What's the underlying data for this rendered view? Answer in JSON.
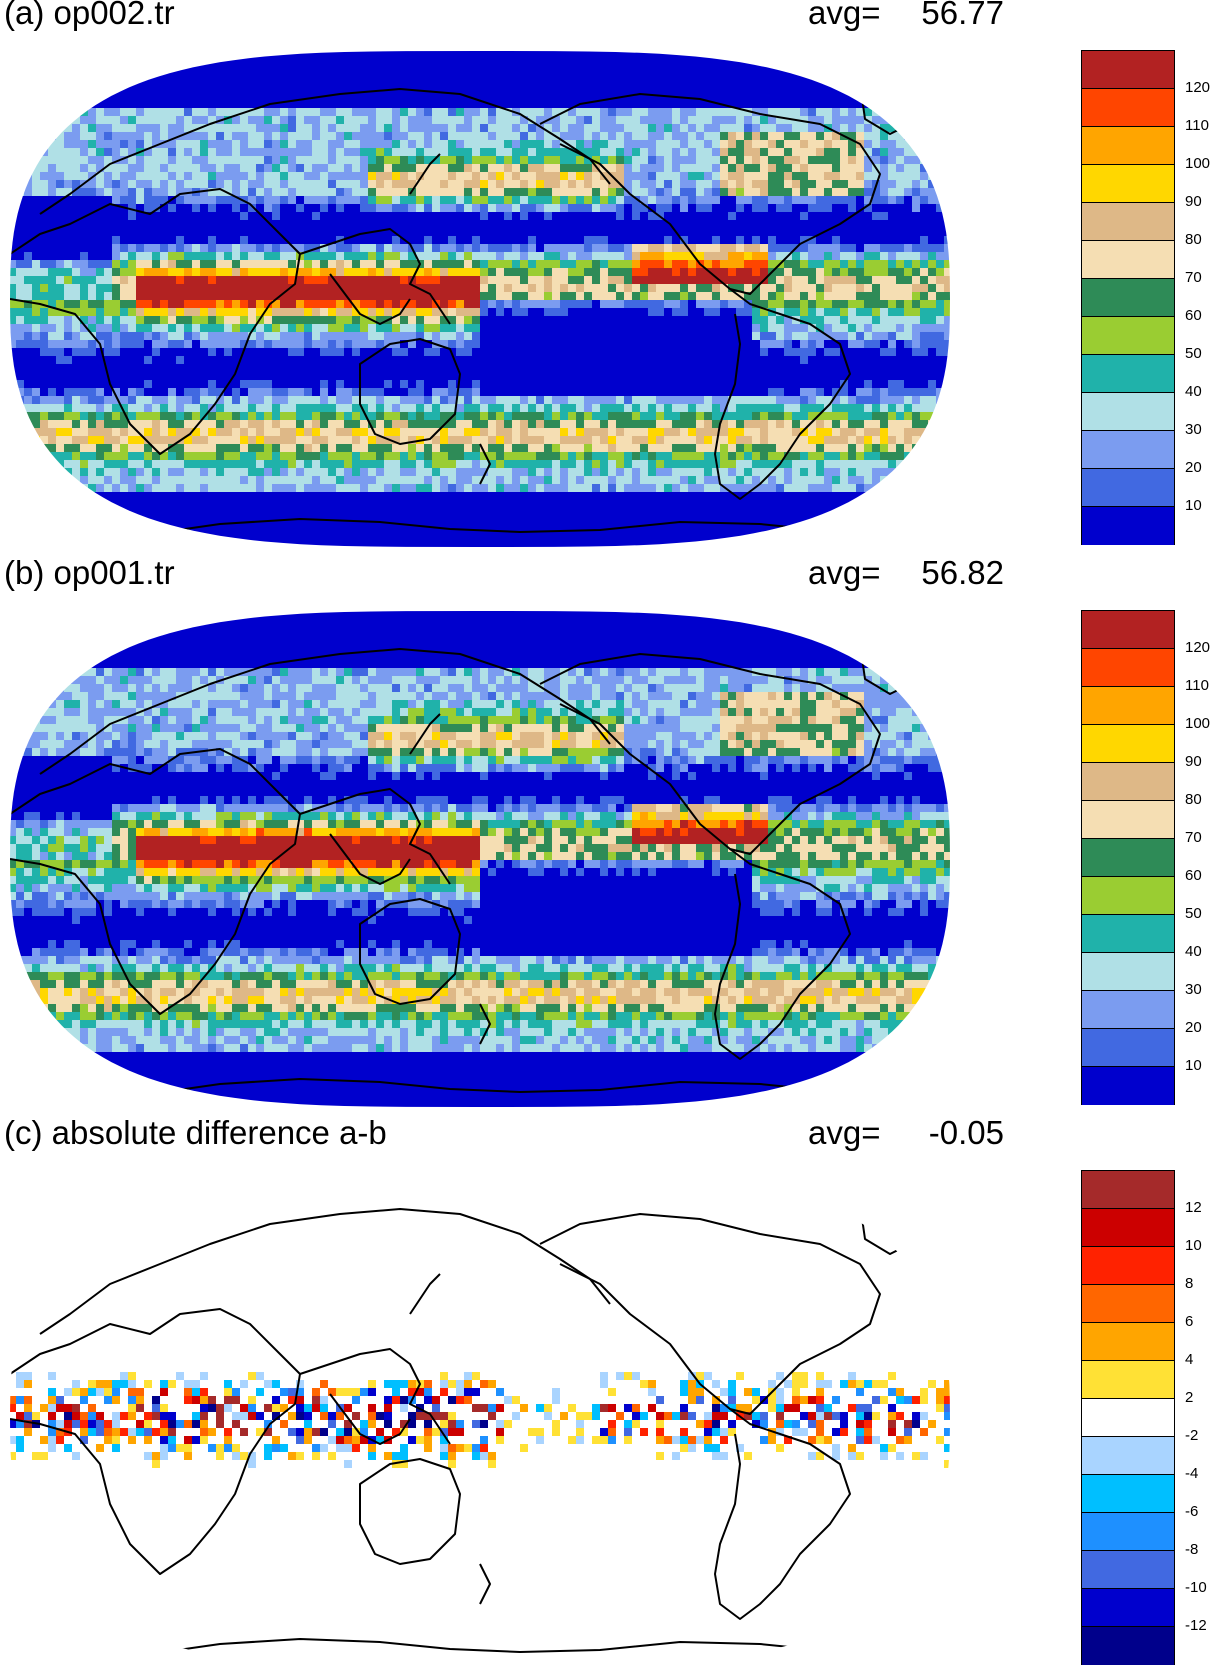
{
  "chart_data": [
    {
      "type": "heatmap",
      "panel_label": "(a) op002.tr",
      "avg_label": "avg=",
      "avg_value": "56.77",
      "projection": "Robinson (world map, Pacific-centred)",
      "colorbar": {
        "colors": [
          "#b22222",
          "#ff4500",
          "#ffa500",
          "#ffd700",
          "#deb887",
          "#f5deb3",
          "#2e8b57",
          "#9acd32",
          "#20b2aa",
          "#b0e0e6",
          "#7b9cf0",
          "#4169e1",
          "#0000cd"
        ],
        "labels": [
          "120",
          "110",
          "100",
          "90",
          "80",
          "70",
          "60",
          "50",
          "40",
          "30",
          "20",
          "10"
        ]
      }
    },
    {
      "type": "heatmap",
      "panel_label": "(b) op001.tr",
      "avg_label": "avg=",
      "avg_value": "56.82",
      "projection": "Robinson (world map, Pacific-centred)",
      "colorbar": {
        "colors": [
          "#b22222",
          "#ff4500",
          "#ffa500",
          "#ffd700",
          "#deb887",
          "#f5deb3",
          "#2e8b57",
          "#9acd32",
          "#20b2aa",
          "#b0e0e6",
          "#7b9cf0",
          "#4169e1",
          "#0000cd"
        ],
        "labels": [
          "120",
          "110",
          "100",
          "90",
          "80",
          "70",
          "60",
          "50",
          "40",
          "30",
          "20",
          "10"
        ]
      }
    },
    {
      "type": "heatmap",
      "panel_label": "(c) absolute difference a-b",
      "avg_label": "avg=",
      "avg_value": "-0.05",
      "projection": "Robinson (world map, Pacific-centred)",
      "colorbar": {
        "colors": [
          "#a52a2a",
          "#cc0000",
          "#ff2200",
          "#ff6600",
          "#ffa500",
          "#ffe135",
          "#ffffff",
          "#a9d4ff",
          "#00bfff",
          "#1e90ff",
          "#4169e1",
          "#0000cd",
          "#00008b"
        ],
        "labels": [
          "12",
          "10",
          "8",
          "6",
          "4",
          "2",
          "-2",
          "-4",
          "-6",
          "-8",
          "-10",
          "-12"
        ]
      }
    }
  ]
}
